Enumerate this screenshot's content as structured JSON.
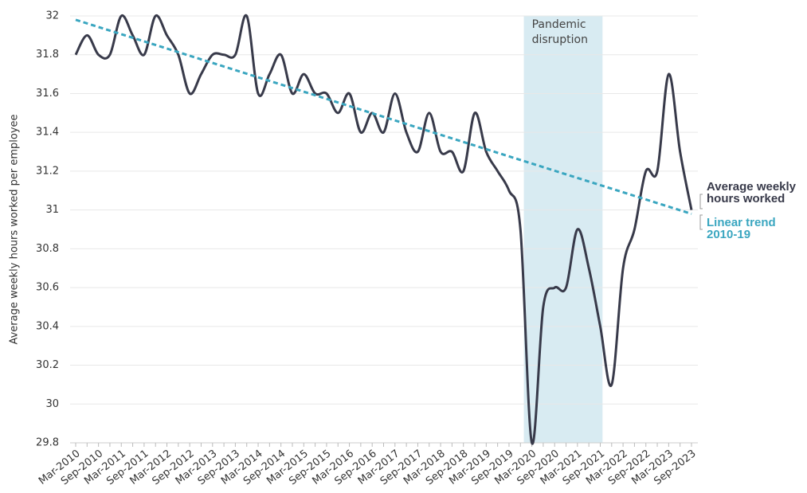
{
  "chart_data": {
    "type": "line",
    "y_label": "Average weekly hours worked per employee",
    "categories": [
      "Mar-2010",
      null,
      "Sep-2010",
      null,
      "Mar-2011",
      null,
      "Sep-2011",
      null,
      "Mar-2012",
      null,
      "Sep-2012",
      null,
      "Mar-2013",
      null,
      "Sep-2013",
      null,
      "Mar-2014",
      null,
      "Sep-2014",
      null,
      "Mar-2015",
      null,
      "Sep-2015",
      null,
      "Mar-2016",
      null,
      "Sep-2016",
      null,
      "Mar-2017",
      null,
      "Sep-2017",
      null,
      "Mar-2018",
      null,
      "Sep-2018",
      null,
      "Mar-2019",
      null,
      "Sep-2019",
      null,
      "Mar-2020",
      null,
      "Sep-2020",
      null,
      "Mar-2021",
      null,
      "Sep-2021",
      null,
      "Mar-2022",
      null,
      "Sep-2022",
      null,
      "Mar-2023",
      null,
      "Sep-2023"
    ],
    "series": [
      {
        "name": "Average weekly hours worked",
        "color": "#383a4a",
        "values": [
          31.8,
          31.9,
          31.8,
          31.8,
          32.0,
          31.9,
          31.8,
          32.0,
          31.9,
          31.8,
          31.6,
          31.7,
          31.8,
          31.8,
          31.8,
          32.0,
          31.6,
          31.7,
          31.8,
          31.6,
          31.7,
          31.6,
          31.6,
          31.5,
          31.6,
          31.4,
          31.5,
          31.4,
          31.6,
          31.4,
          31.3,
          31.5,
          31.3,
          31.3,
          31.2,
          31.5,
          31.3,
          31.2,
          31.1,
          30.9,
          29.8,
          30.5,
          30.6,
          30.6,
          30.9,
          30.7,
          30.4,
          30.1,
          30.7,
          30.9,
          31.2,
          31.2,
          31.7,
          31.3,
          31.0
        ]
      }
    ],
    "trend": {
      "name": "Linear trend 2010-19",
      "color": "#3aa6c0",
      "values": [
        31.98,
        30.98
      ]
    },
    "region": {
      "label": "Pandemic disruption",
      "from": 39.3,
      "to": 46.2,
      "color": "#d8ebf2"
    },
    "ylim": [
      29.8,
      32
    ],
    "yticks": [
      29.8,
      30,
      30.2,
      30.4,
      30.6,
      30.8,
      31,
      31.2,
      31.4,
      31.6,
      31.8,
      32
    ],
    "grid": true
  }
}
